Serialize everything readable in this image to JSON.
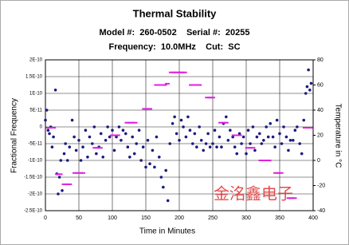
{
  "chart_data": {
    "type": "scatter",
    "title": "Thermal Stability",
    "subtitle": "Model #:  260-0502    Serial #:  20255",
    "subtitle2": "Frequency:  10.0MHz    Cut:  SC",
    "xlabel": "Time in Minutes",
    "ylabel": "Fractional Frequency",
    "y2label": "Temperature in °C",
    "watermark": "金洺鑫电子",
    "xlim": [
      0,
      400
    ],
    "xticks": [
      0,
      50,
      100,
      150,
      200,
      250,
      300,
      350,
      400
    ],
    "ylim": [
      -2.5e-10,
      2e-10
    ],
    "yticks": [
      {
        "value": -2.5e-10,
        "label": "-2.5E-10"
      },
      {
        "value": -2e-10,
        "label": "-2E-10"
      },
      {
        "value": -1.5e-10,
        "label": "-1.5E-10"
      },
      {
        "value": -1e-10,
        "label": "-1E-10"
      },
      {
        "value": -5e-11,
        "label": "-5E-11"
      },
      0,
      {
        "value": 5e-11,
        "label": "5E-11"
      },
      {
        "value": 1e-10,
        "label": "1E-10"
      },
      {
        "value": 1.5e-10,
        "label": "1.5E-10"
      },
      {
        "value": 2e-10,
        "label": "2E-10"
      }
    ],
    "y2lim": [
      -40,
      80
    ],
    "y2ticks": [
      -40,
      -20,
      0,
      20,
      40,
      60,
      80
    ],
    "grid": true,
    "series": [
      {
        "color": "#1c1c80",
        "x": [
          0,
          2,
          4,
          6,
          8,
          10,
          12,
          15,
          17,
          19,
          21,
          23,
          25,
          28,
          30,
          33,
          36,
          40,
          43,
          46,
          50,
          53,
          56,
          60,
          63,
          66,
          70,
          73,
          76,
          80,
          83,
          86,
          90,
          93,
          96,
          100,
          103,
          106,
          110,
          113,
          116,
          120,
          123,
          126,
          130,
          133,
          136,
          140,
          143,
          146,
          150,
          153,
          156,
          160,
          163,
          166,
          170,
          173,
          176,
          180,
          183,
          186,
          190,
          193,
          196,
          200,
          203,
          206,
          210,
          213,
          216,
          220,
          223,
          226,
          230,
          233,
          236,
          240,
          243,
          246,
          250,
          253,
          256,
          260,
          263,
          266,
          270,
          273,
          276,
          280,
          283,
          286,
          290,
          293,
          296,
          300,
          303,
          306,
          310,
          313,
          316,
          320,
          323,
          326,
          330,
          333,
          336,
          340,
          343,
          346,
          350,
          353,
          356,
          360,
          363,
          366,
          370,
          373,
          376,
          380,
          383,
          386,
          389,
          391,
          393,
          395,
          397
        ],
        "values": [
          2e-11,
          5e-11,
          -1e-11,
          -2e-11,
          0,
          -6e-11,
          -3e-11,
          1.1e-10,
          -1.4e-10,
          -2e-10,
          -1.5e-10,
          -1e-10,
          -1.9e-10,
          -8e-11,
          -5e-11,
          -1e-10,
          -6e-11,
          2e-11,
          -3e-11,
          -7e-11,
          -4e-11,
          -1e-10,
          -6e-11,
          -1e-11,
          -9e-11,
          -3e-11,
          -5e-11,
          0,
          -8e-11,
          -6e-11,
          -2e-11,
          -9e-11,
          -4e-11,
          0,
          -3e-11,
          -1e-11,
          -7e-11,
          -3e-11,
          0,
          -4e-11,
          -1e-11,
          -2e-11,
          -6e-11,
          -9e-11,
          -3e-11,
          -8e-11,
          -5e-11,
          -1e-11,
          -1e-10,
          -6e-11,
          -1.2e-10,
          -4e-11,
          -1.1e-10,
          -7e-11,
          -1.2e-10,
          -3e-11,
          -9e-11,
          -1.5e-10,
          -1.8e-10,
          -1.3e-10,
          -2.2e-10,
          -5e-11,
          1e-11,
          3e-11,
          -2e-11,
          -4e-11,
          2e-11,
          0,
          -3e-11,
          3e-11,
          -1e-11,
          -5e-11,
          -2e-11,
          -6e-11,
          0,
          -4e-11,
          -7e-11,
          -5e-11,
          -2e-11,
          -6e-11,
          -5e-11,
          -1e-11,
          -6e-11,
          -3e-11,
          -6e-11,
          1e-11,
          3e-11,
          -4e-11,
          -1e-11,
          -3e-11,
          -6e-11,
          -8e-11,
          -2e-11,
          -5e-11,
          -3e-11,
          -8e-11,
          -1e-11,
          -5e-11,
          0,
          -7e-11,
          -3e-11,
          -2e-11,
          -5e-11,
          -4e-11,
          0,
          -3e-11,
          1e-11,
          -3e-11,
          -6e-11,
          2e-11,
          -2e-11,
          -5e-11,
          0,
          -3e-11,
          -7e-11,
          -4e-11,
          -4e-11,
          -1e-11,
          0,
          -5e-11,
          -8e-11,
          2e-11,
          1e-10,
          1.2e-10,
          1.7e-10,
          1.1e-10,
          1.3e-10
        ]
      },
      {
        "color": "#e020e0",
        "axis": "y2",
        "x": [
          4,
          8,
          12,
          18,
          22,
          28,
          32,
          36,
          44,
          48,
          52,
          56,
          74,
          78,
          82,
          100,
          104,
          108,
          122,
          126,
          130,
          134,
          148,
          152,
          156,
          166,
          170,
          174,
          178,
          182,
          188,
          192,
          196,
          200,
          204,
          208,
          218,
          222,
          226,
          230,
          242,
          246,
          250,
          262,
          266,
          270,
          282,
          286,
          290,
          302,
          306,
          310,
          322,
          326,
          330,
          334,
          344,
          348,
          352,
          364,
          368,
          372,
          388,
          392,
          396
        ],
        "values": [
          26,
          26,
          26,
          -11,
          -11,
          -19,
          -19,
          -19,
          -10,
          -10,
          -10,
          -10,
          10,
          10,
          10,
          20,
          20,
          20,
          30,
          30,
          30,
          30,
          41,
          41,
          41,
          60,
          60,
          60,
          60,
          61,
          70,
          70,
          70,
          70,
          70,
          70,
          60,
          60,
          60,
          60,
          50,
          50,
          50,
          30,
          30,
          30,
          20,
          20,
          20,
          10,
          10,
          10,
          0,
          0,
          0,
          0,
          -10,
          -10,
          -10,
          -30,
          -30,
          -30,
          26,
          26,
          26
        ]
      }
    ]
  }
}
